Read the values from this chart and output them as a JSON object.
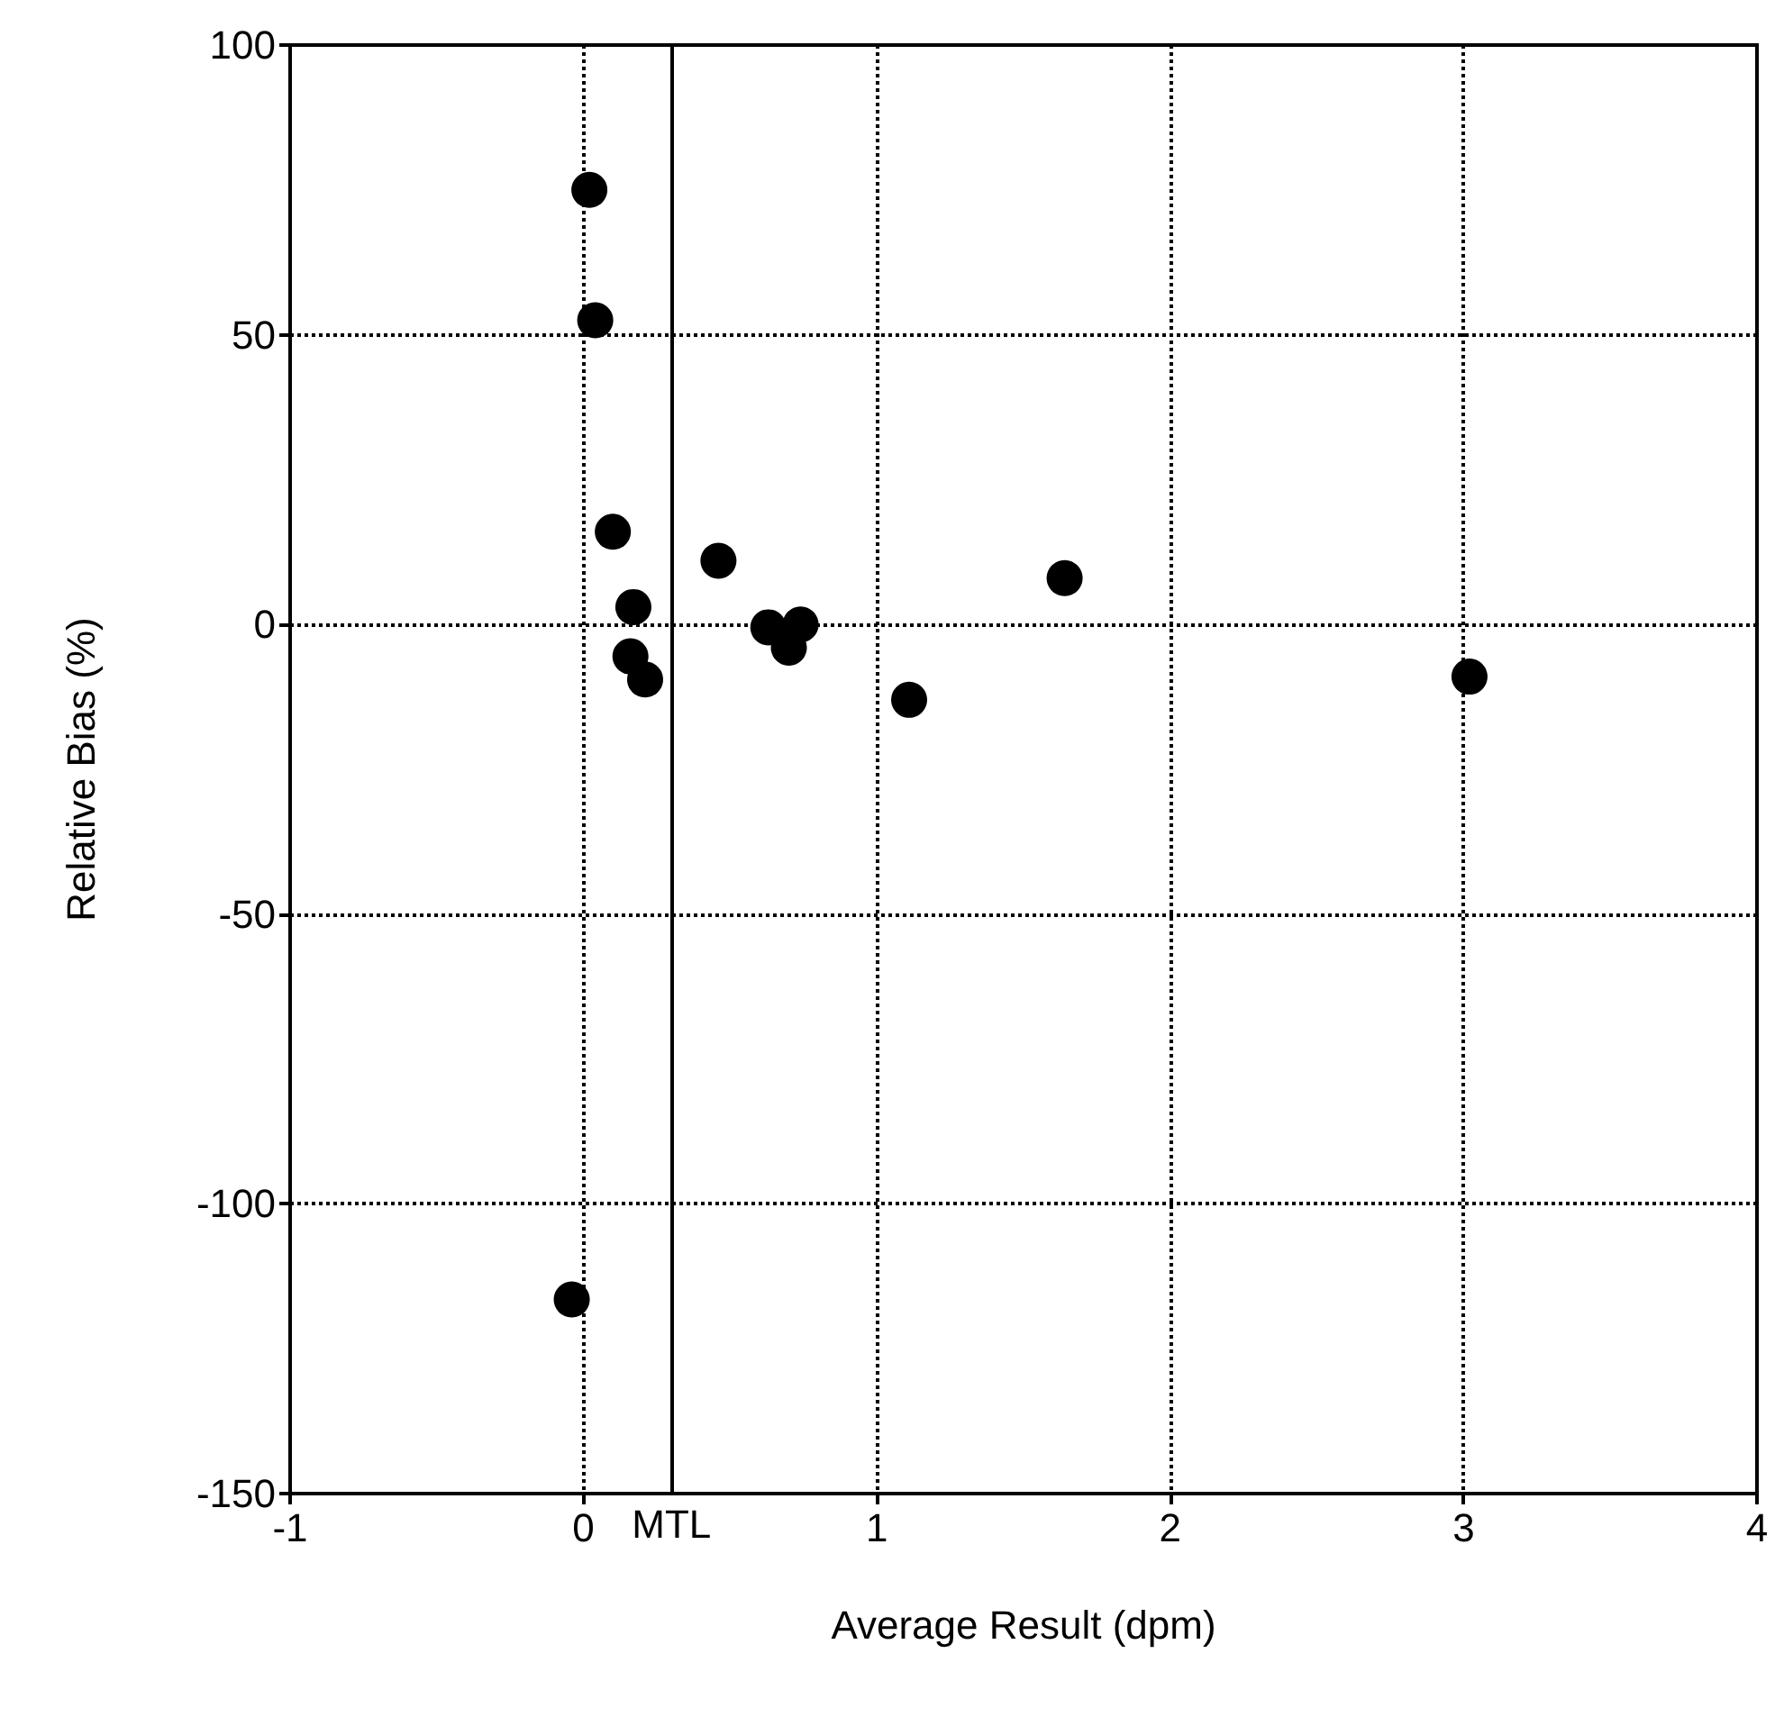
{
  "chart_data": {
    "type": "scatter",
    "xlabel": "Average Result (dpm)",
    "ylabel": "Relative Bias (%)",
    "x": [
      0.02,
      0.04,
      0.1,
      0.17,
      0.16,
      0.21,
      0.46,
      0.63,
      0.7,
      0.74,
      1.11,
      1.64,
      3.02,
      -0.04
    ],
    "series": [
      {
        "color": "#000000",
        "values": [
          75,
          52.5,
          16,
          3,
          -5.5,
          -9.5,
          11,
          -0.5,
          -4,
          0,
          -13,
          8,
          -9,
          -116.5
        ]
      }
    ],
    "xlim": [
      -1,
      4
    ],
    "xticks": [
      -1,
      0,
      1,
      2,
      3,
      4
    ],
    "ylim": [
      -150,
      100
    ],
    "yticks": [
      -150,
      -100,
      -50,
      0,
      50,
      100
    ],
    "grid": true,
    "marker": "circle",
    "ref_lines": [
      {
        "axis": "x",
        "value": 0.3,
        "label": "MTL",
        "color": "#000000",
        "line_style": "solid"
      }
    ]
  }
}
